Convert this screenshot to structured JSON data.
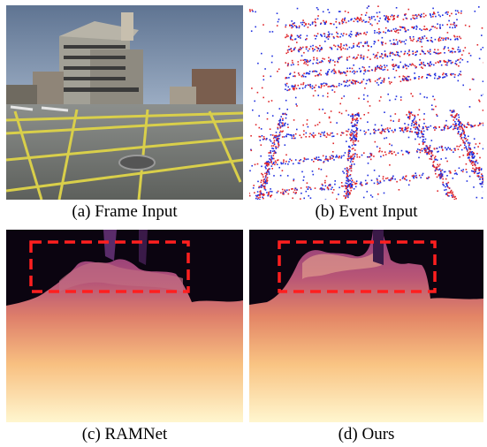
{
  "figure": {
    "panels": [
      {
        "caption": "(a) Frame Input",
        "content": "rgb-frame"
      },
      {
        "caption": "(b) Event Input",
        "content": "event-map"
      },
      {
        "caption": "(c) RAMNet",
        "content": "depth-map"
      },
      {
        "caption": "(d) Ours",
        "content": "depth-map"
      }
    ]
  },
  "colors": {
    "event_positive": "#e0262a",
    "event_negative": "#1f2fe0",
    "highlight_box": "#ff1f1f",
    "depth_far": "#0a0410",
    "depth_near": "#fff6cf"
  }
}
